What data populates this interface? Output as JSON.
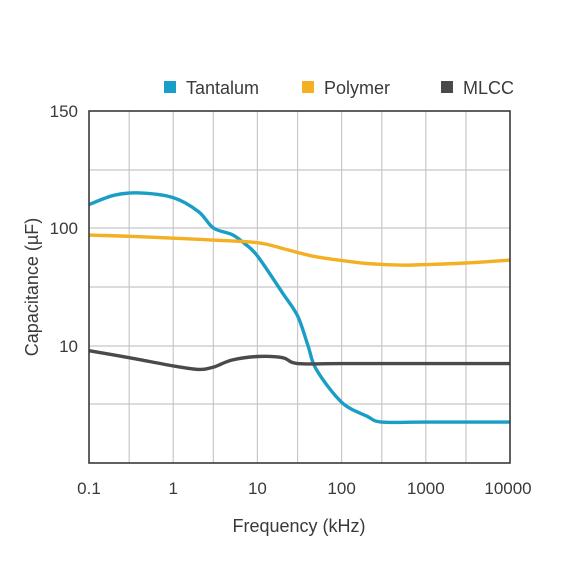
{
  "chart_data": {
    "type": "line",
    "title": "",
    "xlabel": "Frequency (kHz)",
    "ylabel": "Capacitance (µF)",
    "x_scale": "log",
    "xlim": [
      0.1,
      10000
    ],
    "x_tick_labels": [
      "0.1",
      "1",
      "10",
      "100",
      "1000",
      "10000"
    ],
    "y_tick_labels": [
      "150",
      "100",
      "10"
    ],
    "grid": true,
    "legend_position": "top",
    "series": [
      {
        "name": "Tantalum",
        "color": "#1a9dc6",
        "x": [
          0.1,
          0.2,
          0.4,
          1,
          2,
          3,
          5,
          7,
          10,
          20,
          30,
          40,
          50,
          100,
          200,
          300,
          1000,
          10000
        ],
        "y": [
          110,
          114,
          115,
          113,
          107,
          100,
          88,
          74,
          58,
          28,
          18,
          10,
          8,
          5.2,
          4,
          3.5,
          3.5,
          3.5
        ]
      },
      {
        "name": "Polymer",
        "color": "#f2b022",
        "x": [
          0.1,
          0.3,
          1,
          3,
          10,
          20,
          30,
          50,
          100,
          200,
          500,
          1000,
          3000,
          10000
        ],
        "y": [
          87,
          85,
          82,
          79,
          75,
          67,
          62,
          57,
          53,
          50,
          48.5,
          49,
          50.5,
          53.5
        ]
      },
      {
        "name": "MLCC",
        "color": "#4a4a4a",
        "x": [
          0.1,
          0.3,
          1,
          2,
          3,
          5,
          10,
          20,
          30,
          100,
          1000,
          10000
        ],
        "y": [
          9.6,
          9.0,
          8.3,
          8.0,
          8.2,
          8.8,
          9.1,
          9.0,
          8.5,
          8.5,
          8.5,
          8.5
        ]
      }
    ]
  }
}
